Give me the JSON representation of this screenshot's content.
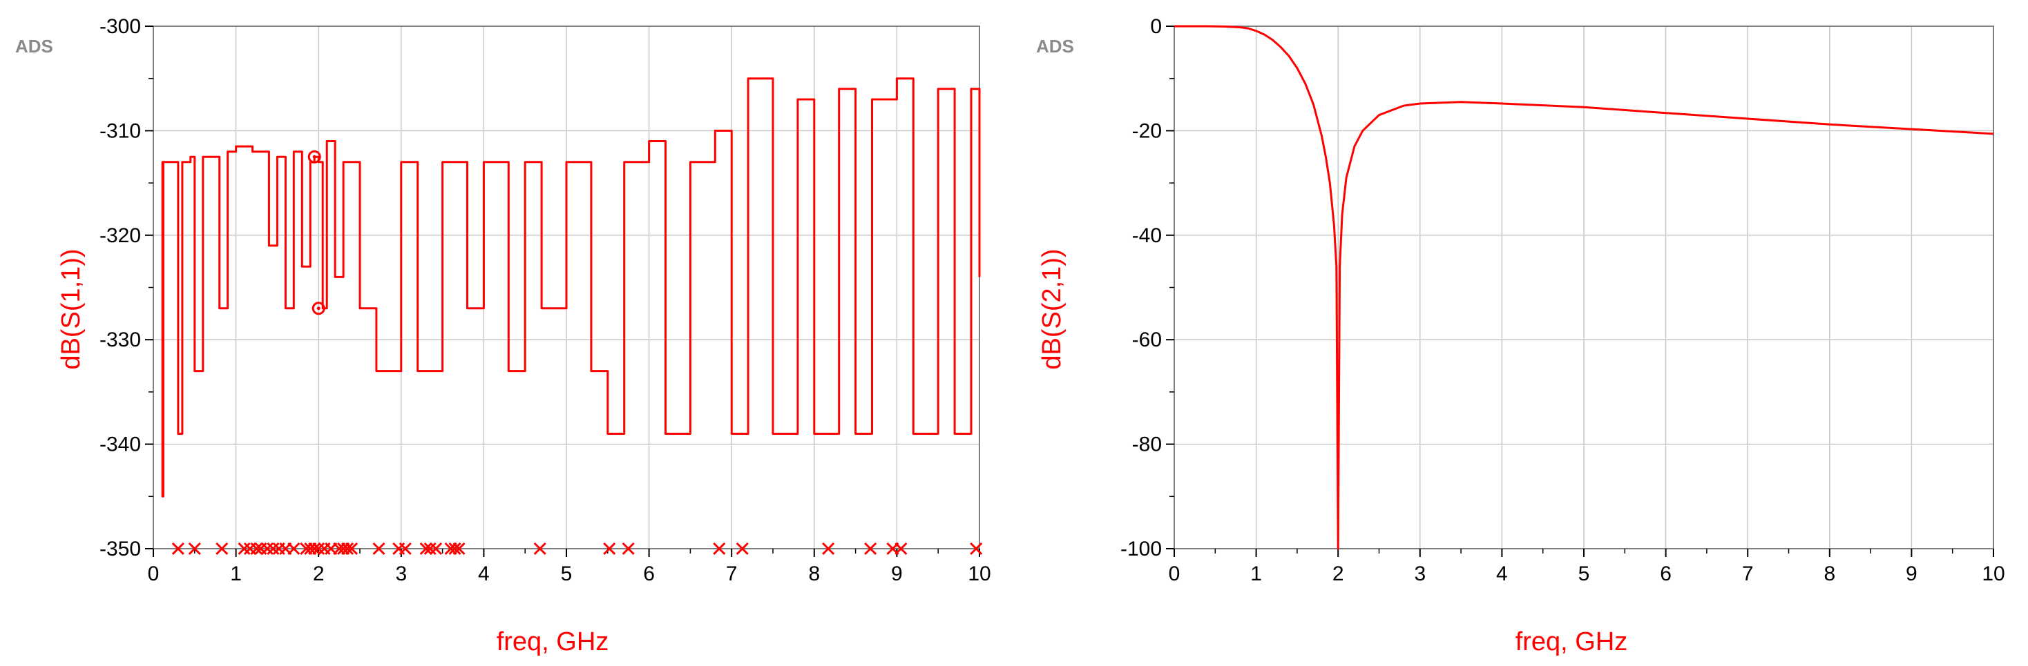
{
  "app": {
    "logo_text": "ADS"
  },
  "colors": {
    "trace": "#ff0000",
    "grid": "#c8c8c8",
    "axis": "#808080"
  },
  "chart_data": [
    {
      "type": "line",
      "title": "",
      "xlabel": "freq, GHz",
      "ylabel": "dB(S(1,1))",
      "xlim": [
        0,
        10
      ],
      "ylim": [
        -350,
        -300
      ],
      "x_ticks": [
        0,
        1,
        2,
        3,
        4,
        5,
        6,
        7,
        8,
        9,
        10
      ],
      "y_ticks": [
        -350,
        -340,
        -330,
        -320,
        -310,
        -300
      ],
      "grid": true,
      "series": [
        {
          "name": "",
          "style": "noisy numerical floor",
          "x": [
            0.1,
            0.11,
            0.12,
            0.25,
            0.3,
            0.35,
            0.45,
            0.5,
            0.6,
            0.8,
            0.9,
            1.0,
            1.2,
            1.4,
            1.5,
            1.6,
            1.7,
            1.8,
            1.9,
            1.95,
            2.0,
            2.05,
            2.1,
            2.2,
            2.3,
            2.5,
            2.7,
            3.0,
            3.2,
            3.5,
            3.8,
            4.0,
            4.3,
            4.5,
            4.7,
            5.0,
            5.3,
            5.5,
            5.7,
            6.0,
            6.2,
            6.5,
            6.8,
            7.0,
            7.2,
            7.5,
            7.8,
            8.0,
            8.3,
            8.5,
            8.7,
            9.0,
            9.2,
            9.5,
            9.7,
            9.9,
            10.0
          ],
          "values": [
            -313,
            -345,
            -313,
            -313,
            -339,
            -313,
            -312.5,
            -333,
            -312.5,
            -327,
            -312,
            -311.5,
            -312,
            -321,
            -312.5,
            -327,
            -312,
            -323,
            -313,
            -312.5,
            -313,
            -327,
            -311,
            -324,
            -313,
            -327,
            -333,
            -313,
            -333,
            -313,
            -327,
            -313,
            -333,
            -313,
            -327,
            -313,
            -333,
            -339,
            -313,
            -311,
            -339,
            -313,
            -310,
            -339,
            -305,
            -339,
            -307,
            -339,
            -306,
            -339,
            -307,
            -305,
            -339,
            -306,
            -339,
            -306,
            -324
          ]
        }
      ],
      "markers_circle": [
        {
          "x": 1.95,
          "y": -312.5
        },
        {
          "x": 2.0,
          "y": -327
        }
      ],
      "markers_cross": {
        "y": -350,
        "x": [
          0.3,
          0.5,
          0.83,
          1.1,
          1.17,
          1.25,
          1.3,
          1.38,
          1.45,
          1.52,
          1.6,
          1.7,
          1.85,
          1.9,
          1.95,
          2.0,
          2.07,
          2.15,
          2.25,
          2.3,
          2.35,
          2.4,
          2.73,
          2.97,
          3.05,
          3.3,
          3.35,
          3.42,
          3.6,
          3.65,
          3.7,
          4.68,
          5.52,
          5.75,
          6.85,
          7.13,
          8.17,
          8.68,
          8.95,
          9.05,
          9.96
        ]
      }
    },
    {
      "type": "line",
      "title": "",
      "xlabel": "freq, GHz",
      "ylabel": "dB(S(2,1))",
      "xlim": [
        0,
        10
      ],
      "ylim": [
        -100,
        0
      ],
      "x_ticks": [
        0,
        1,
        2,
        3,
        4,
        5,
        6,
        7,
        8,
        9,
        10
      ],
      "y_ticks": [
        -100,
        -80,
        -60,
        -40,
        -20,
        0
      ],
      "grid": true,
      "series": [
        {
          "name": "",
          "x": [
            0,
            0.2,
            0.4,
            0.6,
            0.8,
            0.9,
            1.0,
            1.1,
            1.2,
            1.3,
            1.4,
            1.5,
            1.6,
            1.7,
            1.8,
            1.85,
            1.9,
            1.95,
            1.98,
            2.0,
            2.02,
            2.05,
            2.1,
            2.2,
            2.3,
            2.5,
            2.8,
            3.0,
            3.5,
            4.0,
            5.0,
            6.0,
            7.0,
            8.0,
            9.0,
            10.0
          ],
          "values": [
            0,
            0,
            0,
            -0.05,
            -0.2,
            -0.4,
            -0.9,
            -1.6,
            -2.6,
            -4.0,
            -5.7,
            -8.0,
            -11,
            -15,
            -21,
            -25,
            -30,
            -38,
            -46,
            -100,
            -46,
            -36,
            -29,
            -23,
            -20,
            -17,
            -15.2,
            -14.8,
            -14.5,
            -14.8,
            -15.5,
            -16.6,
            -17.7,
            -18.8,
            -19.7,
            -20.6
          ]
        }
      ]
    }
  ]
}
